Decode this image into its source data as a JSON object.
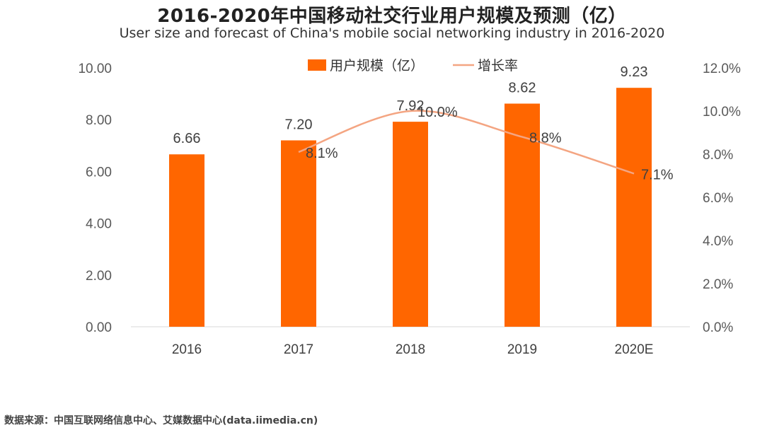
{
  "page": {
    "title": "2016-2020年中国移动社交行业用户规模及预测（亿）",
    "subtitle": "User size and forecast of China's mobile social  networking industry in 2016-2020",
    "source": "数据来源：中国互联网络信息中心、艾媒数据中心(data.iimedia.cn)"
  },
  "chart_data": {
    "type": "bar",
    "title": "2016-2020年中国移动社交行业用户规模及预测（亿）",
    "subtitle": "User size and forecast of China's mobile social  networking industry in 2016-2020",
    "categories": [
      "2016",
      "2017",
      "2018",
      "2019",
      "2020E"
    ],
    "series": [
      {
        "name": "用户规模（亿）",
        "kind": "bar",
        "axis": "left",
        "color": "#FF6600",
        "values": [
          6.66,
          7.2,
          7.92,
          8.62,
          9.23
        ],
        "labels": [
          "6.66",
          "7.20",
          "7.92",
          "8.62",
          "9.23"
        ]
      },
      {
        "name": "增长率",
        "kind": "line",
        "axis": "right",
        "color": "#F4A582",
        "smooth": true,
        "values": [
          null,
          8.1,
          10.0,
          8.8,
          7.1
        ],
        "labels": [
          null,
          "8.1%",
          "10.0%",
          "8.8%",
          "7.1%"
        ]
      }
    ],
    "y_left": {
      "ylim": [
        0,
        10
      ],
      "ticks": [
        0,
        2,
        4,
        6,
        8,
        10
      ],
      "tick_labels": [
        "0.00",
        "2.00",
        "4.00",
        "6.00",
        "8.00",
        "10.00"
      ]
    },
    "y_right": {
      "ylim": [
        0,
        12
      ],
      "ticks": [
        0,
        2,
        4,
        6,
        8,
        10,
        12
      ],
      "tick_labels": [
        "0.0%",
        "2.0%",
        "4.0%",
        "6.0%",
        "8.0%",
        "10.0%",
        "12.0%"
      ]
    },
    "grid": false,
    "legend_position": "top-center",
    "xlabel": "",
    "ylabel": ""
  }
}
